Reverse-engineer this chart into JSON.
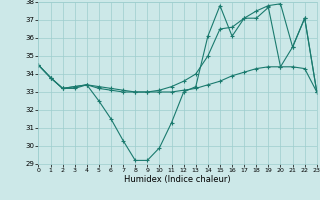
{
  "x": [
    0,
    1,
    2,
    3,
    4,
    5,
    6,
    7,
    8,
    9,
    10,
    11,
    12,
    13,
    14,
    15,
    16,
    17,
    18,
    19,
    20,
    21,
    22,
    23
  ],
  "line1_y": [
    34.5,
    33.8,
    33.2,
    33.2,
    33.4,
    32.5,
    31.5,
    30.3,
    29.2,
    29.2,
    29.9,
    31.3,
    33.0,
    33.3,
    36.1,
    37.8,
    36.1,
    37.1,
    37.1,
    37.7,
    34.4,
    35.5,
    37.1,
    33.0
  ],
  "line2_y": [
    34.5,
    33.8,
    33.2,
    33.3,
    33.4,
    33.2,
    33.1,
    33.0,
    33.0,
    33.0,
    33.0,
    33.0,
    33.1,
    33.2,
    33.4,
    33.6,
    33.9,
    34.1,
    34.3,
    34.4,
    34.4,
    34.4,
    34.3,
    33.0
  ],
  "line3_y": [
    34.5,
    33.8,
    33.2,
    33.3,
    33.4,
    33.3,
    33.2,
    33.1,
    33.0,
    33.0,
    33.1,
    33.3,
    33.6,
    34.0,
    35.0,
    36.5,
    36.6,
    37.1,
    37.5,
    37.8,
    37.9,
    35.5,
    37.1,
    33.0
  ],
  "line_color": "#1a7a6e",
  "bg_color": "#cce8e8",
  "grid_color": "#9ecece",
  "xlabel": "Humidex (Indice chaleur)",
  "ylim_min": 29,
  "ylim_max": 38,
  "xlim_min": 0,
  "xlim_max": 23,
  "yticks": [
    29,
    30,
    31,
    32,
    33,
    34,
    35,
    36,
    37,
    38
  ],
  "xticks": [
    0,
    1,
    2,
    3,
    4,
    5,
    6,
    7,
    8,
    9,
    10,
    11,
    12,
    13,
    14,
    15,
    16,
    17,
    18,
    19,
    20,
    21,
    22,
    23
  ]
}
